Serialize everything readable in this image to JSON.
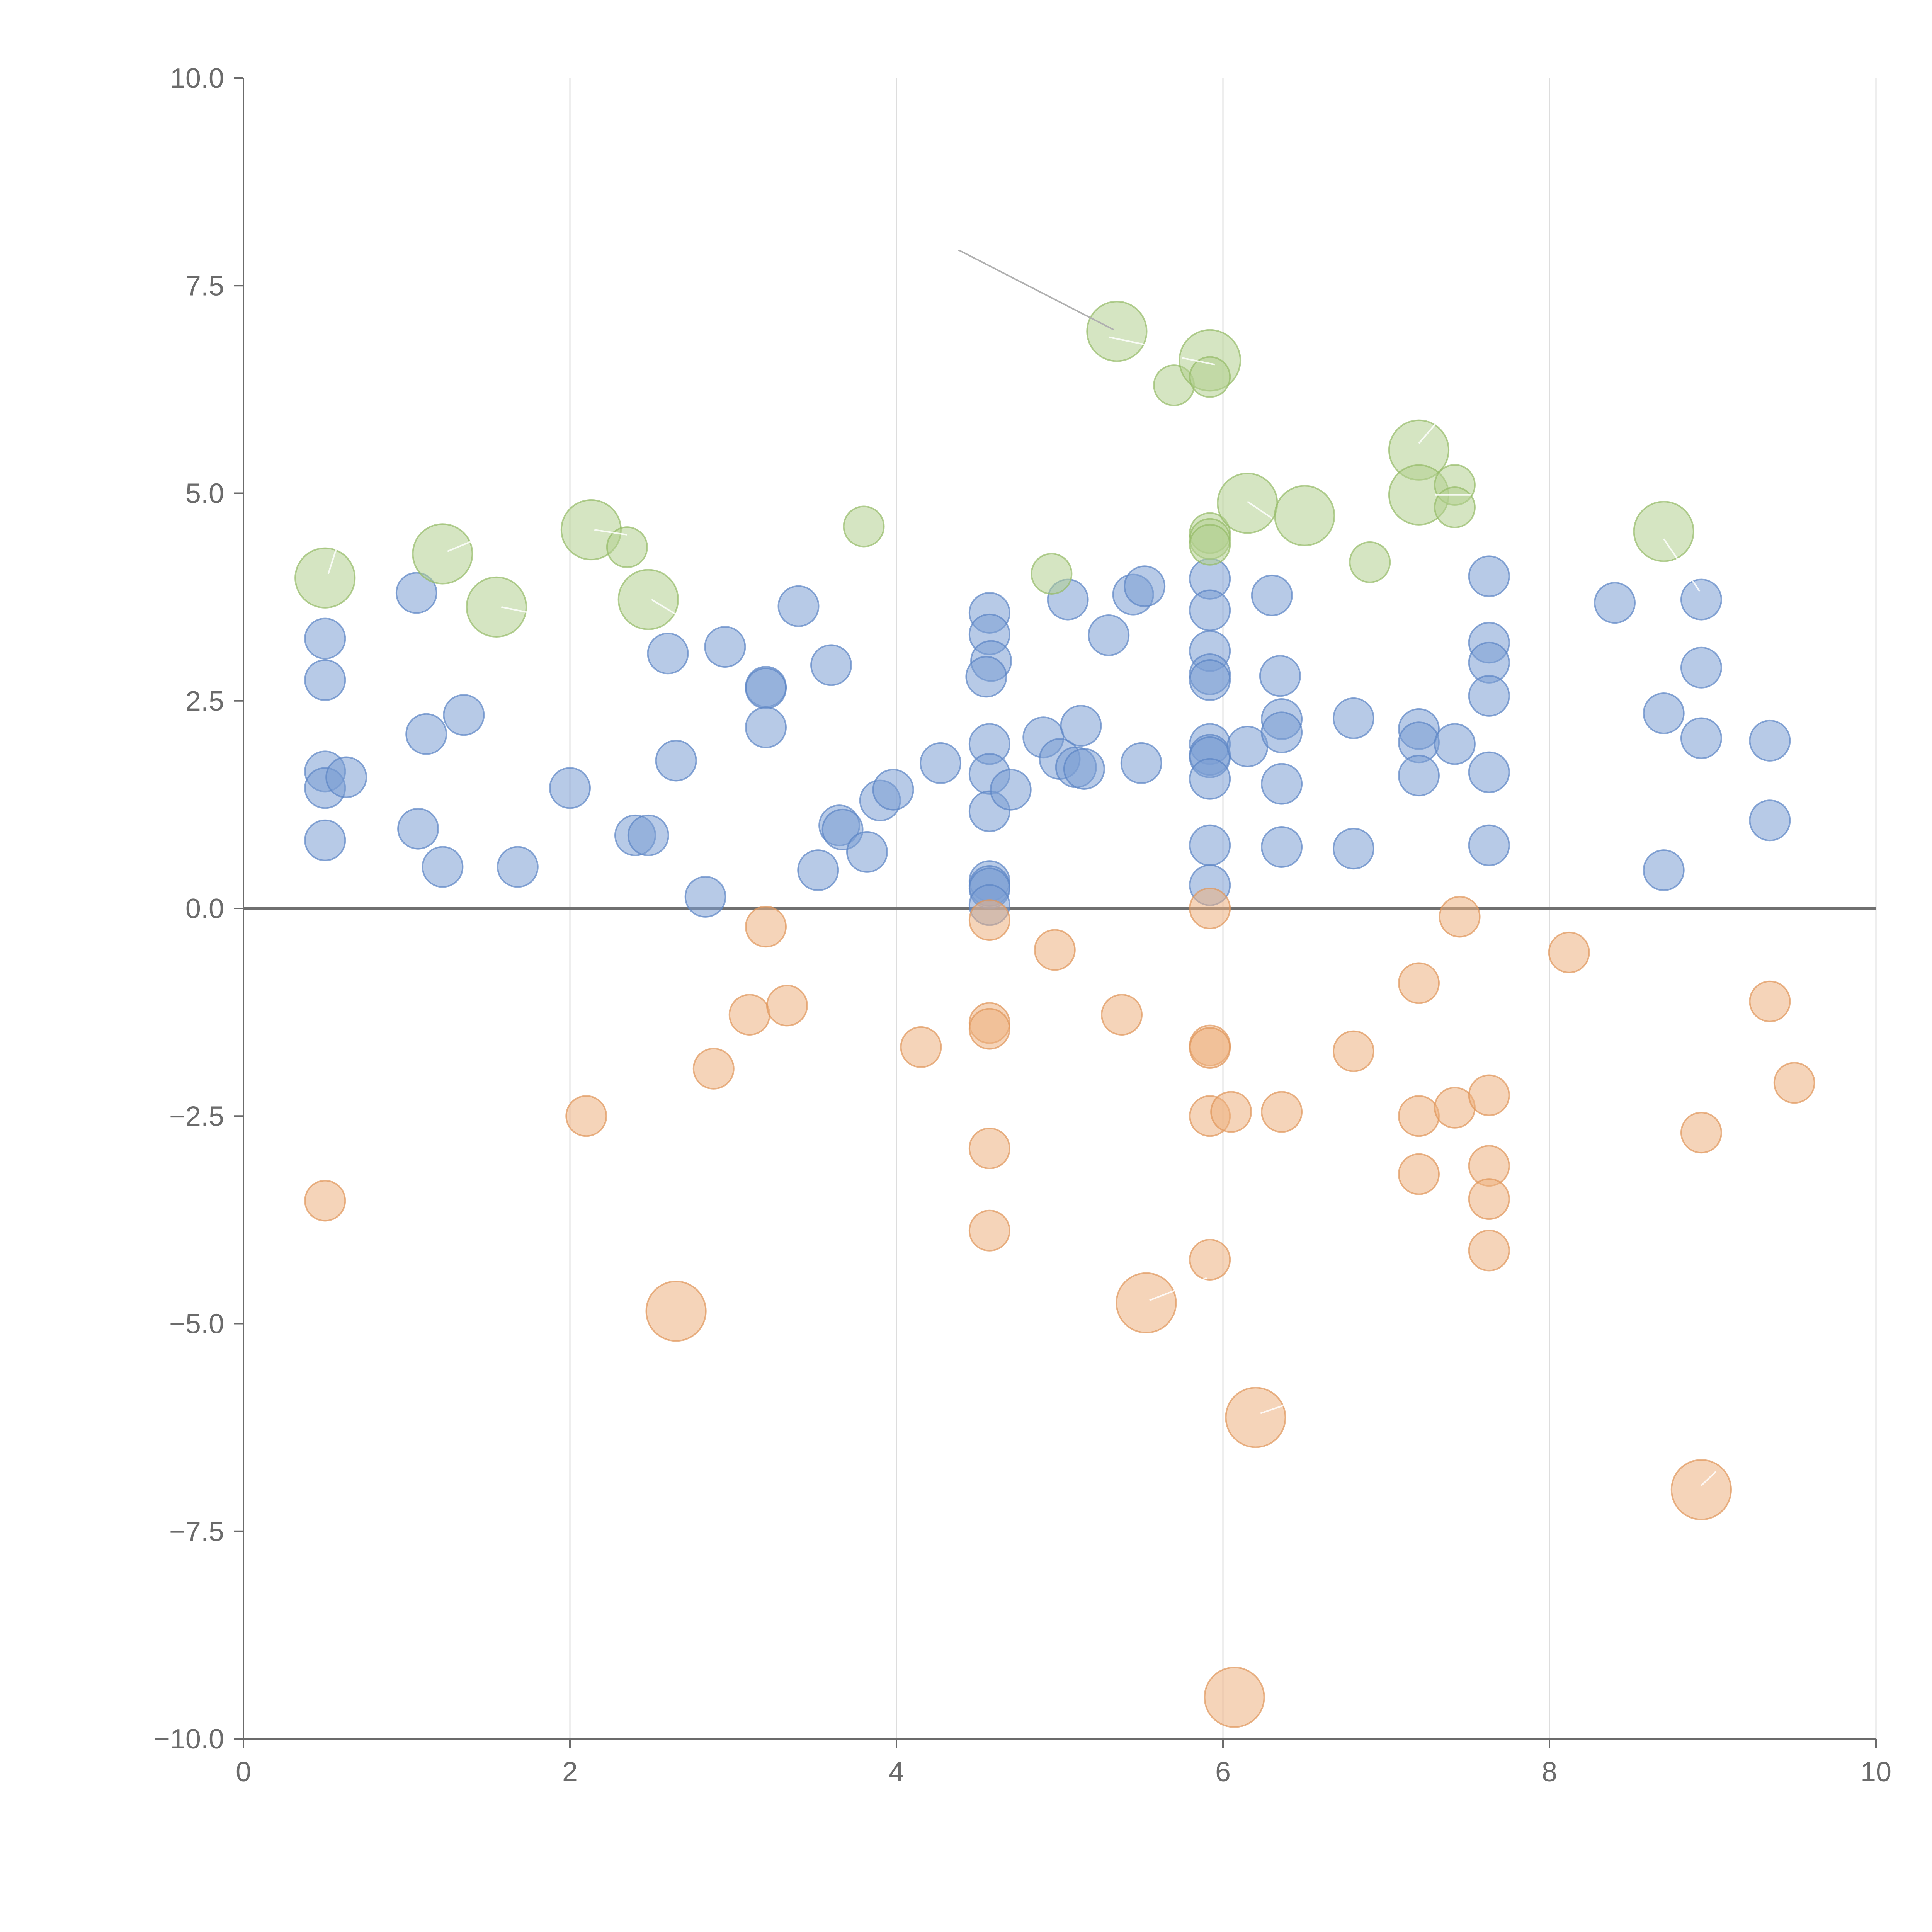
{
  "chart_data": {
    "type": "scatter",
    "xlim": [
      0,
      10
    ],
    "ylim": [
      -10,
      10
    ],
    "x_ticks": [
      0,
      2,
      4,
      6,
      8,
      10
    ],
    "x_tick_labels": [
      "0",
      "2",
      "4",
      "6",
      "8",
      "10"
    ],
    "y_ticks": [
      10,
      7.5,
      5,
      2.5,
      0,
      -2.5,
      -5,
      -7.5,
      -10
    ],
    "y_tick_labels": [
      "10.0",
      "7.5",
      "5.0",
      "2.5",
      "0.0",
      "−2.5",
      "−5.0",
      "−7.5",
      "−10.0"
    ],
    "grid": "vertical lines at x ticks",
    "reference_line_y": 0,
    "colors": {
      "blue": "#7b9fd4",
      "blue_stroke": "#5b84c4",
      "green": "#b3cf8f",
      "green_stroke": "#94ba66",
      "orange": "#ecb17f",
      "orange_stroke": "#e0965a",
      "leader_dark": "#b0b0b0"
    },
    "series": [
      {
        "color": "blue",
        "size": 1,
        "points": [
          [
            0.5,
            3.25
          ],
          [
            0.5,
            2.75
          ],
          [
            0.5,
            1.65
          ],
          [
            0.5,
            1.45
          ],
          [
            0.5,
            0.82
          ],
          [
            0.63,
            1.58
          ],
          [
            1.06,
            3.8
          ],
          [
            1.07,
            0.96
          ],
          [
            1.12,
            2.1
          ],
          [
            1.22,
            0.5
          ],
          [
            1.35,
            2.33
          ],
          [
            1.68,
            0.5
          ],
          [
            2.0,
            1.45
          ],
          [
            2.4,
            0.88
          ],
          [
            2.48,
            0.88
          ],
          [
            2.6,
            3.07
          ],
          [
            2.65,
            1.78
          ],
          [
            2.83,
            0.14
          ],
          [
            2.95,
            3.15
          ],
          [
            3.2,
            2.67
          ],
          [
            3.2,
            2.65
          ],
          [
            3.2,
            2.18
          ],
          [
            3.4,
            3.64
          ],
          [
            3.52,
            0.46
          ],
          [
            3.6,
            2.93
          ],
          [
            3.65,
            1.0
          ],
          [
            3.67,
            0.95
          ],
          [
            3.82,
            0.68
          ],
          [
            3.9,
            1.3
          ],
          [
            3.98,
            1.43
          ],
          [
            4.27,
            1.75
          ],
          [
            4.57,
            3.56
          ],
          [
            4.57,
            3.3
          ],
          [
            4.58,
            2.98
          ],
          [
            4.55,
            2.79
          ],
          [
            4.57,
            1.98
          ],
          [
            4.57,
            1.62
          ],
          [
            4.57,
            1.17
          ],
          [
            4.57,
            0.33
          ],
          [
            4.57,
            0.27
          ],
          [
            4.57,
            0.24
          ],
          [
            4.57,
            0.04
          ],
          [
            4.7,
            1.43
          ],
          [
            4.9,
            2.06
          ],
          [
            5.0,
            1.8
          ],
          [
            5.05,
            3.72
          ],
          [
            5.1,
            1.7
          ],
          [
            5.13,
            2.2
          ],
          [
            5.15,
            1.68
          ],
          [
            5.3,
            3.29
          ],
          [
            5.45,
            3.78
          ],
          [
            5.5,
            1.75
          ],
          [
            5.52,
            3.88
          ],
          [
            5.92,
            3.97
          ],
          [
            5.92,
            3.59
          ],
          [
            5.92,
            3.1
          ],
          [
            5.92,
            2.82
          ],
          [
            5.92,
            2.75
          ],
          [
            5.92,
            1.98
          ],
          [
            5.92,
            1.85
          ],
          [
            5.92,
            1.82
          ],
          [
            5.92,
            1.56
          ],
          [
            5.92,
            0.76
          ],
          [
            5.92,
            0.28
          ],
          [
            6.15,
            1.95
          ],
          [
            6.3,
            3.77
          ],
          [
            6.35,
            2.8
          ],
          [
            6.36,
            2.28
          ],
          [
            6.36,
            2.12
          ],
          [
            6.36,
            1.5
          ],
          [
            6.36,
            0.74
          ],
          [
            6.8,
            2.29
          ],
          [
            6.8,
            0.72
          ],
          [
            7.2,
            2.16
          ],
          [
            7.2,
            2.0
          ],
          [
            7.2,
            1.6
          ],
          [
            7.42,
            1.98
          ],
          [
            7.63,
            4.0
          ],
          [
            7.63,
            3.2
          ],
          [
            7.63,
            2.96
          ],
          [
            7.63,
            2.56
          ],
          [
            7.63,
            1.64
          ],
          [
            7.63,
            0.76
          ],
          [
            8.4,
            3.68
          ],
          [
            8.7,
            2.35
          ],
          [
            8.7,
            0.46
          ],
          [
            8.93,
            3.72
          ],
          [
            8.93,
            2.9
          ],
          [
            8.93,
            2.05
          ],
          [
            9.35,
            2.02
          ],
          [
            9.35,
            1.06
          ]
        ]
      },
      {
        "color": "green",
        "points": [
          [
            0.5,
            3.98,
            2.2
          ],
          [
            1.22,
            4.27,
            2.2
          ],
          [
            1.55,
            3.63,
            2.2
          ],
          [
            2.13,
            4.56,
            2.2
          ],
          [
            2.48,
            3.72,
            2.2
          ],
          [
            2.35,
            4.35,
            1
          ],
          [
            3.8,
            4.6,
            1
          ],
          [
            4.95,
            4.03,
            1
          ],
          [
            5.35,
            6.95,
            2.2
          ],
          [
            5.7,
            6.3,
            1
          ],
          [
            5.92,
            6.6,
            2.3
          ],
          [
            5.92,
            6.4,
            1
          ],
          [
            5.92,
            4.52,
            1
          ],
          [
            5.92,
            4.45,
            1
          ],
          [
            5.92,
            4.38,
            1
          ],
          [
            6.15,
            4.88,
            2.2
          ],
          [
            6.5,
            4.73,
            2.2
          ],
          [
            6.9,
            4.17,
            1
          ],
          [
            7.2,
            5.52,
            2.2
          ],
          [
            7.2,
            4.98,
            2.2
          ],
          [
            7.42,
            5.1,
            1
          ],
          [
            7.42,
            4.83,
            1
          ],
          [
            8.7,
            4.54,
            2.2
          ]
        ]
      },
      {
        "color": "orange",
        "points": [
          [
            0.5,
            -3.52,
            1
          ],
          [
            2.1,
            -2.5,
            1
          ],
          [
            2.65,
            -4.85,
            2.2
          ],
          [
            2.88,
            -1.93,
            1
          ],
          [
            3.1,
            -1.28,
            1
          ],
          [
            3.2,
            -0.22,
            1
          ],
          [
            3.33,
            -1.17,
            1
          ],
          [
            4.15,
            -1.67,
            1
          ],
          [
            4.57,
            -0.14,
            1
          ],
          [
            4.57,
            -1.38,
            1
          ],
          [
            4.57,
            -1.45,
            1
          ],
          [
            4.57,
            -2.89,
            1
          ],
          [
            4.57,
            -3.88,
            1
          ],
          [
            4.97,
            -0.5,
            1
          ],
          [
            5.38,
            -1.28,
            1
          ],
          [
            5.53,
            -4.75,
            2.2
          ],
          [
            5.92,
            0.0,
            1
          ],
          [
            5.92,
            -1.65,
            1
          ],
          [
            5.92,
            -1.68,
            1
          ],
          [
            5.92,
            -2.5,
            1
          ],
          [
            5.92,
            -4.23,
            1
          ],
          [
            6.05,
            -2.45,
            1
          ],
          [
            6.07,
            -9.5,
            2.2
          ],
          [
            6.2,
            -6.13,
            2.2
          ],
          [
            6.36,
            -2.45,
            1
          ],
          [
            6.8,
            -1.72,
            1
          ],
          [
            7.2,
            -0.9,
            1
          ],
          [
            7.2,
            -2.5,
            1
          ],
          [
            7.2,
            -3.2,
            1
          ],
          [
            7.42,
            -2.4,
            1
          ],
          [
            7.45,
            -0.1,
            1
          ],
          [
            7.63,
            -2.25,
            1
          ],
          [
            7.63,
            -3.1,
            1
          ],
          [
            7.63,
            -3.5,
            1
          ],
          [
            7.63,
            -4.12,
            1
          ],
          [
            8.12,
            -0.53,
            1
          ],
          [
            8.93,
            -2.7,
            1
          ],
          [
            8.93,
            -7.0,
            2.2
          ],
          [
            9.35,
            -1.12,
            1
          ],
          [
            9.5,
            -2.1,
            1
          ]
        ]
      }
    ],
    "leader_lines": [
      {
        "from": [
          4.38,
          7.93
        ],
        "to": [
          5.33,
          6.97
        ],
        "color": "dark"
      },
      {
        "from": [
          0.52,
          4.03
        ],
        "to": [
          0.58,
          4.4
        ],
        "color": "white"
      },
      {
        "from": [
          1.25,
          4.3
        ],
        "to": [
          1.42,
          4.44
        ],
        "color": "white"
      },
      {
        "from": [
          1.58,
          3.63
        ],
        "to": [
          1.78,
          3.55
        ],
        "color": "white"
      },
      {
        "from": [
          2.15,
          4.56
        ],
        "to": [
          2.35,
          4.5
        ],
        "color": "white"
      },
      {
        "from": [
          2.5,
          3.72
        ],
        "to": [
          2.65,
          3.54
        ],
        "color": "white"
      },
      {
        "from": [
          5.3,
          6.88
        ],
        "to": [
          5.7,
          6.72
        ],
        "color": "white"
      },
      {
        "from": [
          5.75,
          6.63
        ],
        "to": [
          5.95,
          6.55
        ],
        "color": "white"
      },
      {
        "from": [
          6.15,
          4.9
        ],
        "to": [
          6.3,
          4.7
        ],
        "color": "white"
      },
      {
        "from": [
          7.2,
          5.6
        ],
        "to": [
          7.3,
          5.83
        ],
        "color": "white"
      },
      {
        "from": [
          7.3,
          4.98
        ],
        "to": [
          7.52,
          4.98
        ],
        "color": "white"
      },
      {
        "from": [
          8.7,
          4.45
        ],
        "to": [
          8.92,
          3.82
        ],
        "color": "white"
      },
      {
        "from": [
          5.55,
          -4.72
        ],
        "to": [
          5.9,
          -4.45
        ],
        "color": "white"
      },
      {
        "from": [
          6.23,
          -6.08
        ],
        "to": [
          6.38,
          -5.98
        ],
        "color": "white"
      },
      {
        "from": [
          8.93,
          -6.95
        ],
        "to": [
          9.02,
          -6.78
        ],
        "color": "white"
      }
    ]
  }
}
